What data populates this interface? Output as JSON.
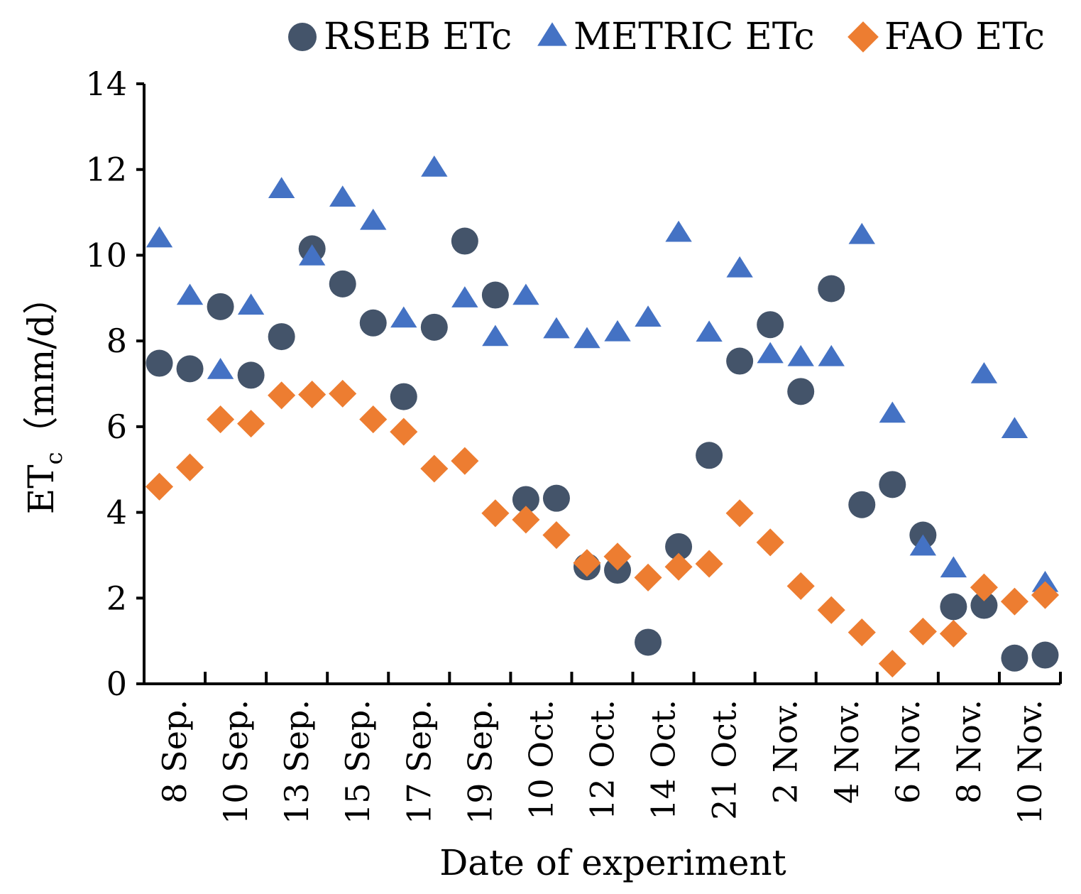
{
  "chart_data": {
    "type": "scatter",
    "xlabel": "Date of experiment",
    "ylabel_main": "ET",
    "ylabel_sub": "c",
    "ylabel_unit": "（mm/d）",
    "ylim": [
      0,
      14
    ],
    "yticks": [
      0,
      2,
      4,
      6,
      8,
      10,
      12,
      14
    ],
    "grid": false,
    "legend_position": "top-right",
    "categories": [
      "8 Sep.",
      "10 Sep.",
      "13 Sep.",
      "15 Sep.",
      "17 Sep.",
      "19 Sep.",
      "10 Oct.",
      "12 Oct.",
      "14 Oct.",
      "21 Oct.",
      "2 Nov.",
      "4 Nov.",
      "6 Nov.",
      "8 Nov.",
      "10 Nov."
    ],
    "series": [
      {
        "name": "RSEB ETc",
        "marker": "circle",
        "color": "#44546A",
        "values": [
          7.48,
          7.35,
          8.8,
          7.2,
          8.1,
          10.15,
          9.33,
          8.42,
          6.7,
          8.32,
          10.33,
          9.07,
          4.3,
          4.33,
          2.73,
          2.65,
          0.97,
          3.2,
          5.33,
          7.53,
          8.38,
          6.82,
          9.22,
          4.18,
          4.65,
          3.47,
          1.8,
          1.83,
          0.6,
          0.67
        ]
      },
      {
        "name": "METRIC ETc",
        "marker": "triangle",
        "color": "#4472C4",
        "values": [
          10.37,
          9.03,
          7.3,
          8.8,
          11.52,
          9.95,
          11.32,
          10.78,
          8.5,
          12.02,
          8.97,
          8.07,
          9.03,
          8.25,
          8.02,
          8.18,
          8.52,
          10.5,
          8.17,
          9.67,
          7.67,
          7.6,
          7.6,
          10.45,
          6.28,
          3.18,
          2.67,
          7.2,
          5.92,
          2.33
        ]
      },
      {
        "name": "FAO ETc",
        "marker": "diamond",
        "color": "#ED7D31",
        "values": [
          4.6,
          5.05,
          6.17,
          6.07,
          6.73,
          6.75,
          6.77,
          6.17,
          5.88,
          5.02,
          5.2,
          3.98,
          3.83,
          3.47,
          2.82,
          2.97,
          2.48,
          2.73,
          2.8,
          3.98,
          3.3,
          2.28,
          1.72,
          1.2,
          0.47,
          1.22,
          1.17,
          2.25,
          1.92,
          2.07
        ]
      }
    ]
  }
}
